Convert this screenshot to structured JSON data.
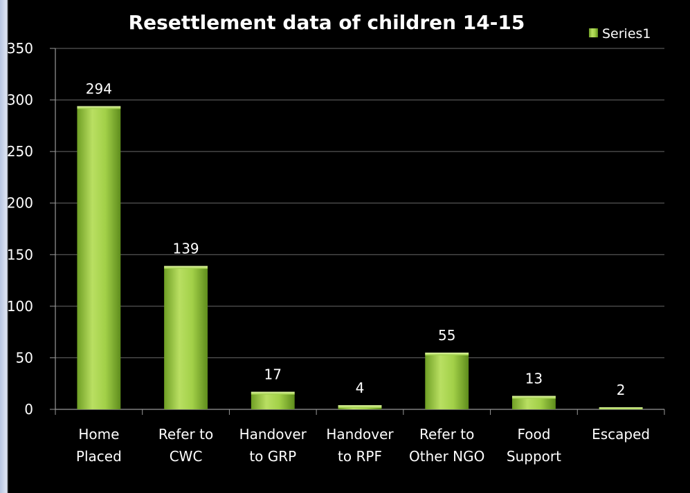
{
  "chart_data": {
    "type": "bar",
    "title": "Resettlement data of children 14-15",
    "categories": [
      [
        "Home",
        "Placed"
      ],
      [
        "Refer to",
        "CWC"
      ],
      [
        "Handover",
        "to GRP"
      ],
      [
        "Handover",
        "to RPF"
      ],
      [
        "Refer to",
        "Other NGO"
      ],
      [
        "Food",
        "Support"
      ],
      [
        "Escaped"
      ]
    ],
    "series": [
      {
        "name": "Series1",
        "values": [
          294,
          139,
          17,
          4,
          55,
          13,
          2
        ]
      }
    ],
    "ylim": [
      0,
      350
    ],
    "yticks": [
      0,
      50,
      100,
      150,
      200,
      250,
      300,
      350
    ],
    "grid": true,
    "legend_position": "top-right",
    "colors": {
      "background": "#000000",
      "bar": "#8fc23a",
      "bar_dark": "#5a8a1a",
      "bar_light": "#cfe98a",
      "grid": "#6a6a6a",
      "text": "#ffffff"
    }
  }
}
